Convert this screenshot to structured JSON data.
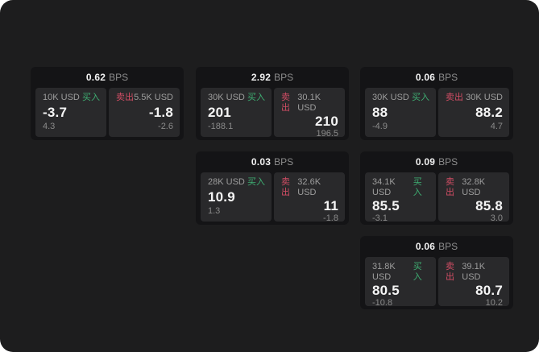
{
  "unit": "BPS",
  "labels": {
    "buy": "买入",
    "sell": "卖出"
  },
  "colors": {
    "background": "#1d1d1e",
    "card": "#141416",
    "panel": "#29292b",
    "buy": "#3eae72",
    "sell": "#d14d64"
  },
  "cards": [
    {
      "bps": "0.62",
      "buy": {
        "amount": "10K USD",
        "value": "-3.7",
        "sub": "4.3"
      },
      "sell": {
        "amount": "5.5K USD",
        "value": "-1.8",
        "sub": "-2.6"
      }
    },
    {
      "bps": "2.92",
      "buy": {
        "amount": "30K USD",
        "value": "201",
        "sub": "-188.1"
      },
      "sell": {
        "amount": "30.1K USD",
        "value": "210",
        "sub": "196.5"
      }
    },
    {
      "bps": "0.06",
      "buy": {
        "amount": "30K USD",
        "value": "88",
        "sub": "-4.9"
      },
      "sell": {
        "amount": "30K USD",
        "value": "88.2",
        "sub": "4.7"
      }
    },
    {
      "bps": "0.03",
      "buy": {
        "amount": "28K USD",
        "value": "10.9",
        "sub": "1.3"
      },
      "sell": {
        "amount": "32.6K USD",
        "value": "11",
        "sub": "-1.8"
      }
    },
    {
      "bps": "0.09",
      "buy": {
        "amount": "34.1K USD",
        "value": "85.5",
        "sub": "-3.1"
      },
      "sell": {
        "amount": "32.8K USD",
        "value": "85.8",
        "sub": "3.0"
      }
    },
    {
      "bps": "0.06",
      "buy": {
        "amount": "31.8K USD",
        "value": "80.5",
        "sub": "-10.8"
      },
      "sell": {
        "amount": "39.1K USD",
        "value": "80.7",
        "sub": "10.2"
      }
    }
  ]
}
